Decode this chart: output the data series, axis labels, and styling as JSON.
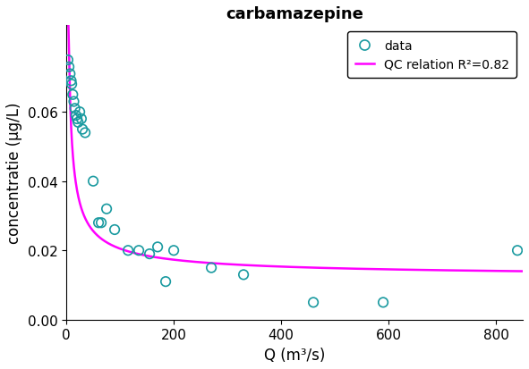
{
  "title": "carbamazepine",
  "xlabel": "Q (m³/s)",
  "ylabel": "concentratie (µg/L)",
  "scatter_x": [
    3,
    5,
    7,
    9,
    10,
    12,
    14,
    16,
    18,
    20,
    22,
    25,
    28,
    30,
    35,
    50,
    60,
    65,
    75,
    90,
    115,
    135,
    155,
    170,
    185,
    200,
    270,
    330,
    460,
    590,
    840
  ],
  "scatter_y": [
    0.075,
    0.073,
    0.071,
    0.069,
    0.068,
    0.065,
    0.063,
    0.061,
    0.059,
    0.058,
    0.057,
    0.06,
    0.058,
    0.055,
    0.054,
    0.04,
    0.028,
    0.028,
    0.032,
    0.026,
    0.02,
    0.02,
    0.019,
    0.021,
    0.011,
    0.02,
    0.015,
    0.013,
    0.005,
    0.005,
    0.02
  ],
  "curve_a": 0.0135,
  "curve_b": -0.22,
  "curve_c": 0.012,
  "scatter_color": "#1a9aa0",
  "curve_color": "#ff00ff",
  "legend_label_scatter": "data",
  "legend_label_curve": "QC relation R²=0.82",
  "xlim": [
    0,
    850
  ],
  "ylim": [
    0,
    0.085
  ],
  "yticks": [
    0,
    0.02,
    0.04,
    0.06
  ],
  "xticks": [
    0,
    200,
    400,
    600,
    800
  ],
  "marker_size": 8,
  "marker_linewidth": 1.2,
  "curve_linewidth": 1.8,
  "title_fontsize": 13,
  "label_fontsize": 12,
  "tick_fontsize": 11,
  "legend_fontsize": 10
}
